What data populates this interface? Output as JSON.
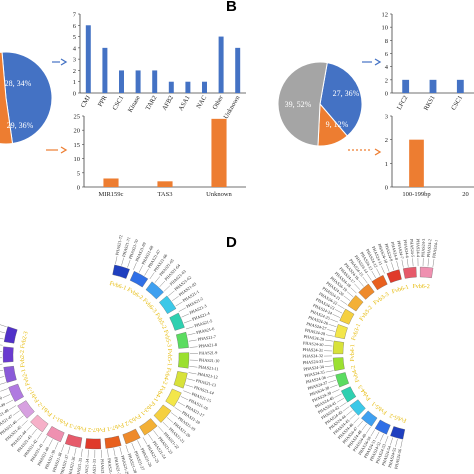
{
  "panel_labels": {
    "b": "B",
    "d": "D"
  },
  "colors": {
    "blue": "#4472C4",
    "orange": "#ED7D31",
    "grey": "#A5A5A5",
    "yellow_text": "#E5B800",
    "axis": "#404040"
  },
  "chart_data": [
    {
      "id": "A-pie",
      "type": "pie",
      "slices": [
        {
          "label": "28, 34%",
          "value": 28,
          "color": "#4472C4"
        },
        {
          "label": "29, 36%",
          "value": 29,
          "color": "#ED7D31"
        }
      ]
    },
    {
      "id": "A-bar-top",
      "type": "bar",
      "categories": [
        "CMJ",
        "PPR",
        "CSC1",
        "Kinase",
        "TAR2",
        "AFB2",
        "ASA1",
        "NAC",
        "Other",
        "Unknown"
      ],
      "values": [
        6,
        4,
        2,
        2,
        2,
        1,
        1,
        1,
        5,
        4
      ],
      "ylim": [
        0,
        7
      ],
      "yticks": [
        "0",
        "1",
        "2",
        "3",
        "4",
        "5",
        "6",
        "7"
      ],
      "color": "#4472C4"
    },
    {
      "id": "A-bar-bottom",
      "type": "bar",
      "categories": [
        "MIR159c",
        "TAS3",
        "Unknown"
      ],
      "values": [
        3,
        2,
        24
      ],
      "ylim": [
        0,
        25
      ],
      "yticks": [
        "0",
        "5",
        "10",
        "15",
        "20",
        "25"
      ],
      "color": "#ED7D31"
    },
    {
      "id": "B-pie",
      "type": "pie",
      "slices": [
        {
          "label": "27, 36%",
          "value": 27,
          "color": "#4472C4"
        },
        {
          "label": "9, 12%",
          "value": 9,
          "color": "#ED7D31"
        },
        {
          "label": "39, 52%",
          "value": 39,
          "color": "#A5A5A5"
        }
      ]
    },
    {
      "id": "B-bar-top",
      "type": "bar",
      "categories": [
        "LFC2",
        "RKS1",
        "CSC1"
      ],
      "values": [
        2,
        2,
        2
      ],
      "ylim": [
        0,
        12
      ],
      "yticks": [
        "0",
        "2",
        "4",
        "6",
        "8",
        "10",
        "12"
      ],
      "color": "#4472C4"
    },
    {
      "id": "B-bar-bottom",
      "type": "bar",
      "categories": [
        "100-199bp",
        "20"
      ],
      "values": [
        2,
        0
      ],
      "ylim": [
        0,
        3
      ],
      "yticks": [
        "0",
        "1",
        "2",
        "3"
      ],
      "color": "#ED7D31"
    }
  ],
  "circos_left": {
    "chromosomes": [
      "Fvb1-1",
      "Fvb1-2",
      "Fvb2-1",
      "Fvb2-2",
      "Fvb3-1",
      "Fvb3-2",
      "Fvb4-1",
      "Fvb4-2",
      "Fvb5-1",
      "Fvb5-2",
      "Fvb6-1",
      "Fvb6-2",
      "Fvb7-1",
      "Fvb7-2"
    ],
    "visible_labels": [
      "Fvb6-1",
      "Fvb6-2",
      "Fvb6-3",
      "Fvb5-2",
      "Fvb5-3",
      "Fvb5-1",
      "Fvb4-2",
      "Fvb4-1",
      "Fvb3-1",
      "Fvb3-2",
      "Fvb7-1",
      "Fvb7-2",
      "Fvb7-3",
      "Fvb1-1",
      "Fvb1-2",
      "Fvb1-3",
      "Fvb2-1",
      "Fvb2-2",
      "Fvb2-3"
    ],
    "phas": [
      "PHAS21-72",
      "PHAS21-71",
      "PHAS21-70",
      "PHAS21-69",
      "PHAS21-68",
      "PHAS21-67",
      "PHAS21-66",
      "PHAS21-65",
      "PHAS21-64",
      "PHAS21-63",
      "PHAS21-62",
      "PHAS21-83",
      "PHAS21-1",
      "PHAS21-2",
      "PHAS21-3",
      "PHAS21-4",
      "PHAS21-5",
      "PHAS21-6",
      "PHAS21-7",
      "PHAS21-8",
      "PHAS21-9",
      "PHAS21-10",
      "PHAS21-11",
      "PHAS21-12",
      "PHAS21-13",
      "PHAS21-14",
      "PHAS21-15",
      "PHAS21-16",
      "PHAS21-17",
      "PHAS21-18",
      "PHAS21-19",
      "PHAS21-20",
      "PHAS21-21",
      "PHAS21-22",
      "PHAS21-23",
      "PHAS21-24",
      "PHAS21-25",
      "PHAS21-26",
      "PHAS21-27",
      "PHAS21-28",
      "PHAS21-29",
      "PHAS21-30",
      "PHAS21-31",
      "PHAS21-32",
      "PHAS21-33",
      "PHAS21-34",
      "PHAS21-35",
      "PHAS21-36",
      "PHAS21-37",
      "PHAS21-38",
      "PHAS21-39",
      "PHAS21-40",
      "PHAS21-41",
      "PHAS21-42",
      "PHAS21-43",
      "PHAS21-44",
      "PHAS21-45",
      "PHAS21-46",
      "PHAS21-47",
      "PHAS21-48",
      "PHAS21-49",
      "PHAS21-50",
      "PHAS21-51",
      "PHAS21-52",
      "PHAS21-53",
      "PHAS21-54",
      "PHAS21-55",
      "PHAS21-56",
      "PHAS21-57",
      "PHAS21-58",
      "PHAS21-59",
      "PHAS21-60",
      "PHAS21-61"
    ]
  },
  "circos_right": {
    "phas": [
      "PHAS24-56",
      "PHAS24-55",
      "PHAS24-54",
      "PHAS24-53",
      "PHAS24-52",
      "PHAS24-51",
      "PHAS24-50",
      "PHAS24-49",
      "PHAS24-48",
      "PHAS24-47",
      "PHAS24-46",
      "PHAS24-45",
      "PHAS24-44",
      "PHAS24-43",
      "PHAS24-42",
      "PHAS24-41",
      "PHAS24-40",
      "PHAS24-39",
      "PHAS24-38",
      "PHAS24-37",
      "PHAS24-36",
      "PHAS24-35",
      "PHAS24-34",
      "PHAS24-33",
      "PHAS24-32",
      "PHAS24-31",
      "PHAS24-30",
      "PHAS24-29",
      "PHAS24-28",
      "PHAS24-27",
      "PHAS24-26",
      "PHAS24-25",
      "PHAS24-24",
      "PHAS24-23",
      "PHAS24-22",
      "PHAS24-21",
      "PHAS24-20",
      "PHAS24-19",
      "PHAS24-18",
      "PHAS24-17",
      "PHAS24-16",
      "PHAS24-15",
      "PHAS24-14",
      "PHAS24-13",
      "PHAS24-12",
      "PHAS24-11",
      "PHAS24-10",
      "PHAS24-9",
      "PHAS24-8",
      "PHAS24-7",
      "PHAS24-6",
      "PHAS24-5",
      "PHAS24-4",
      "PHAS24-3",
      "PHAS24-2",
      "PHAS24-1"
    ],
    "visible_labels": [
      "Fvb5-2",
      "Fvb5-1",
      "Fvb4-3",
      "Fvb4-2",
      "Fvb4-1",
      "Fvb3-1",
      "Fvb3-2",
      "Fvb3-3",
      "Fvb6-1",
      "Fvb6-2"
    ]
  }
}
